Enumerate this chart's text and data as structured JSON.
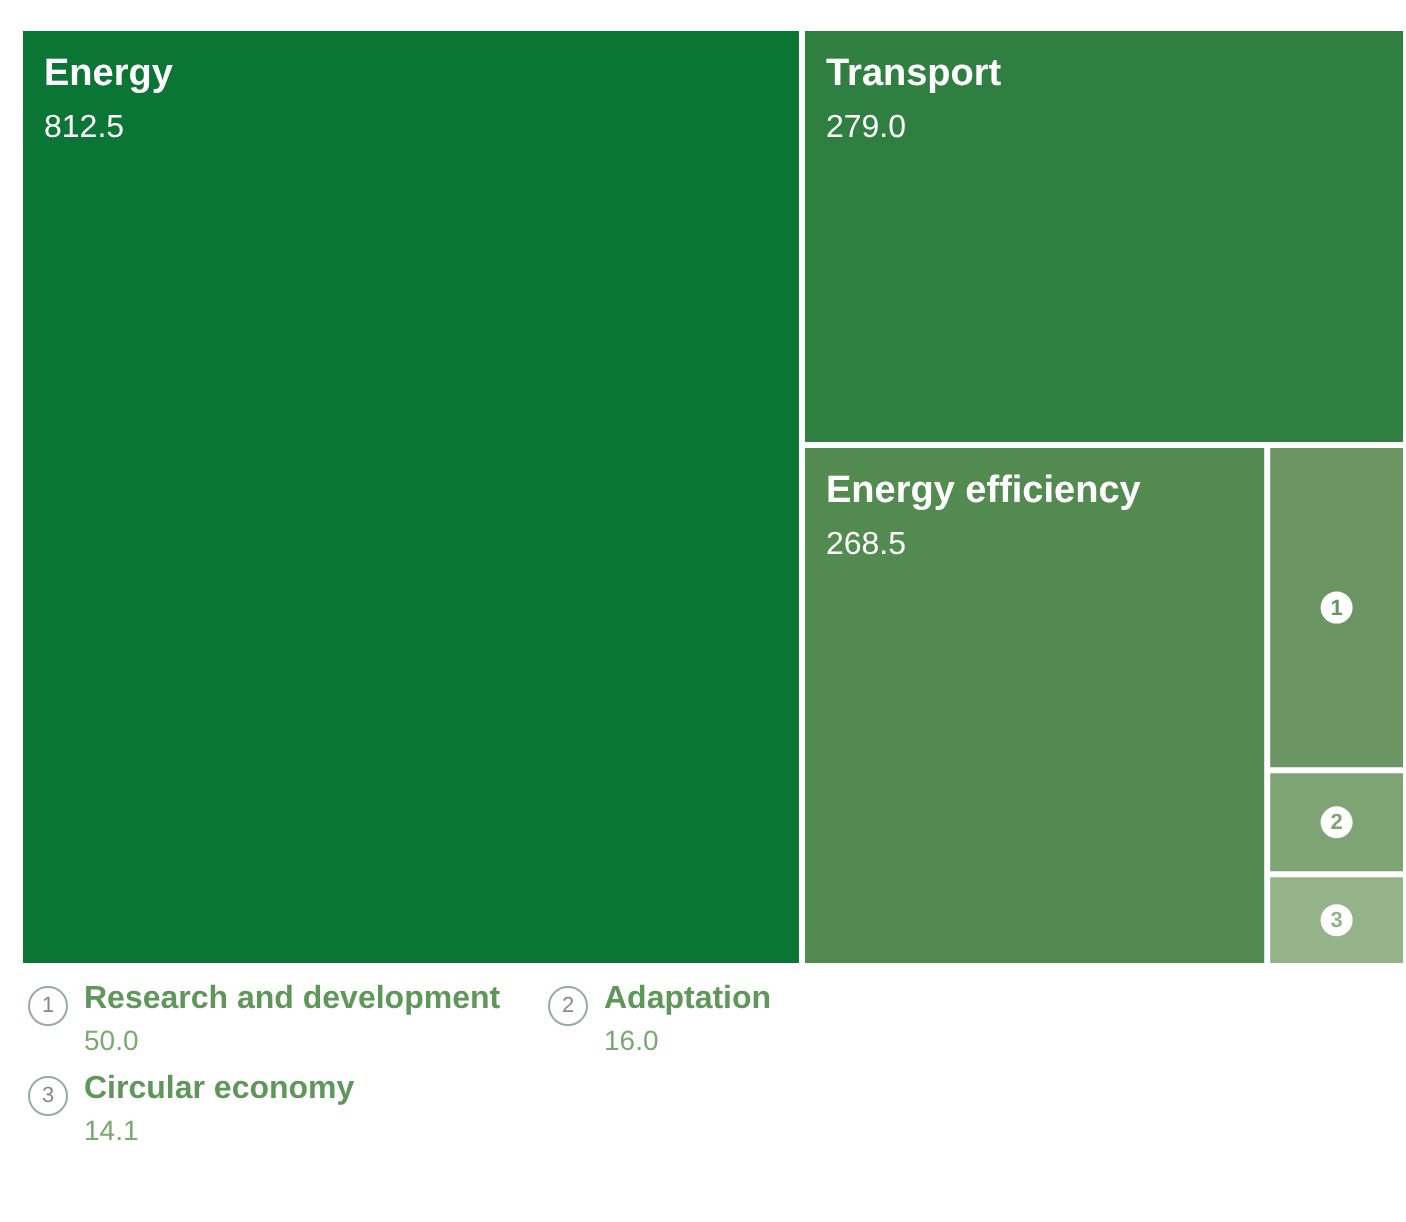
{
  "chart_data": {
    "type": "other",
    "categories": [
      "Energy",
      "Transport",
      "Energy efficiency",
      "Research and development",
      "Adaptation",
      "Circular economy"
    ],
    "values": [
      812.5,
      279.0,
      268.5,
      50.0,
      16.0,
      14.1
    ],
    "value_labels": [
      "812.5",
      "279.0",
      "268.5",
      "50.0",
      "16.0",
      "14.1"
    ],
    "annotations": [
      "1",
      "2",
      "3"
    ],
    "colors": [
      "#0b7535",
      "#2f7f40",
      "#528a50",
      "#6b9663",
      "#7fa474",
      "#94b389"
    ]
  }
}
